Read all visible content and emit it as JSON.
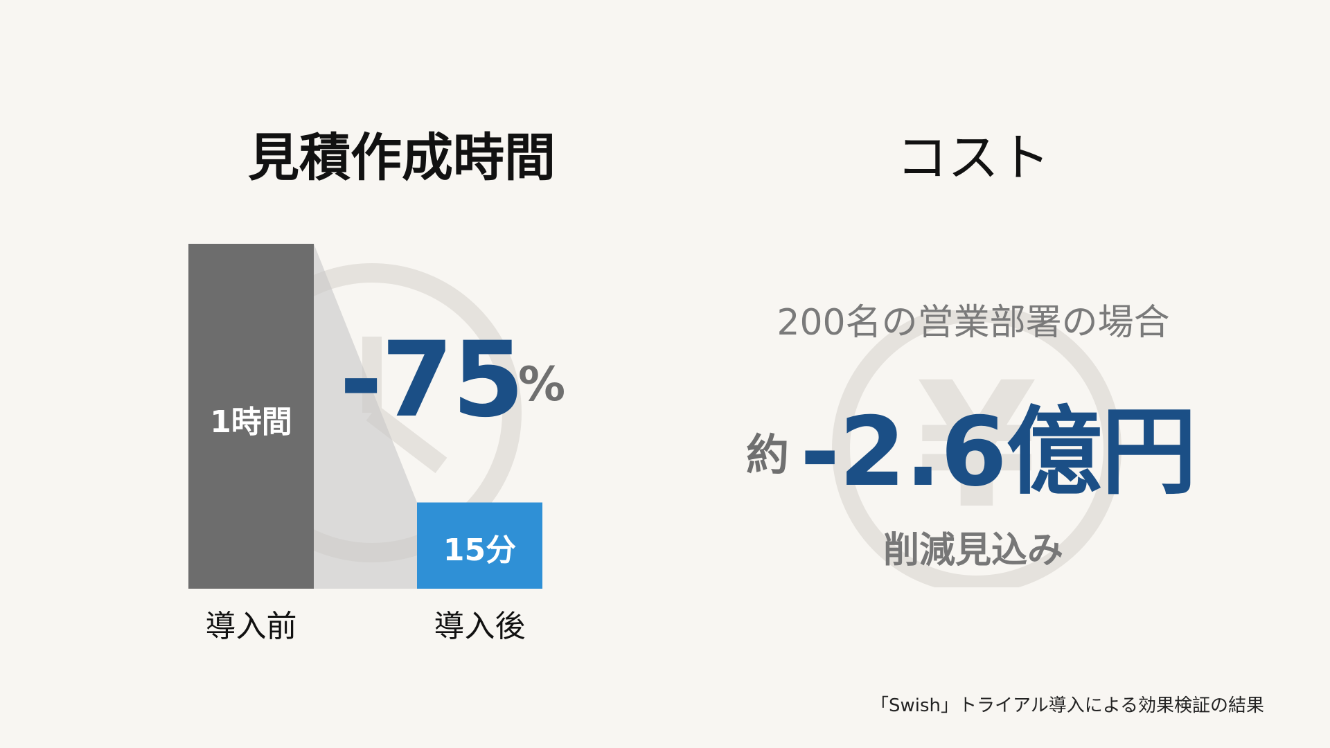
{
  "left_panel": {
    "title": "見積作成時間"
  },
  "right_panel": {
    "title": "コスト",
    "condition": "200名の営業部署の場合",
    "prefix": "約",
    "value": "-2.6億円",
    "note": "削減見込み"
  },
  "footnote": "「Swish」トライアル導入による効果検証の結果",
  "icons": {
    "left_background": "clock-icon",
    "right_background": "yen-coin-icon"
  },
  "colors": {
    "before_bar": "#6d6d6d",
    "after_bar": "#2f90d6",
    "accent_value": "#1b4f86",
    "background": "#f8f6f2"
  },
  "chart_data": {
    "type": "bar",
    "categories": [
      "導入前",
      "導入後"
    ],
    "values": [
      60,
      15
    ],
    "value_unit": "minutes",
    "bar_labels": [
      "1時間",
      "15分"
    ],
    "annotation": {
      "value": "-75",
      "unit": "%"
    },
    "ylim": [
      0,
      60
    ],
    "grid": false,
    "legend": "none"
  }
}
